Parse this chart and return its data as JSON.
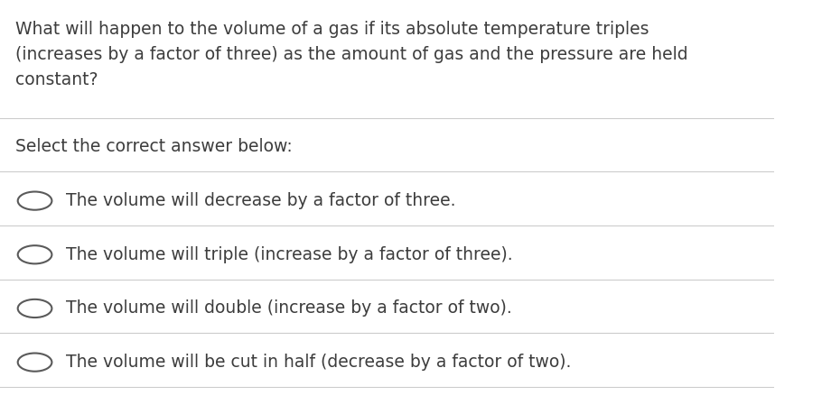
{
  "background_color": "#ffffff",
  "question_text": "What will happen to the volume of a gas if its absolute temperature triples\n(increases by a factor of three) as the amount of gas and the pressure are held\nconstant?",
  "instruction_text": "Select the correct answer below:",
  "options": [
    "The volume will decrease by a factor of three.",
    "The volume will triple (increase by a factor of three).",
    "The volume will double (increase by a factor of two).",
    "The volume will be cut in half (decrease by a factor of two)."
  ],
  "text_color": "#3d3d3d",
  "line_color": "#cccccc",
  "circle_color": "#5a5a5a",
  "question_fontsize": 13.5,
  "instruction_fontsize": 13.5,
  "option_fontsize": 13.5,
  "font_family": "sans-serif"
}
